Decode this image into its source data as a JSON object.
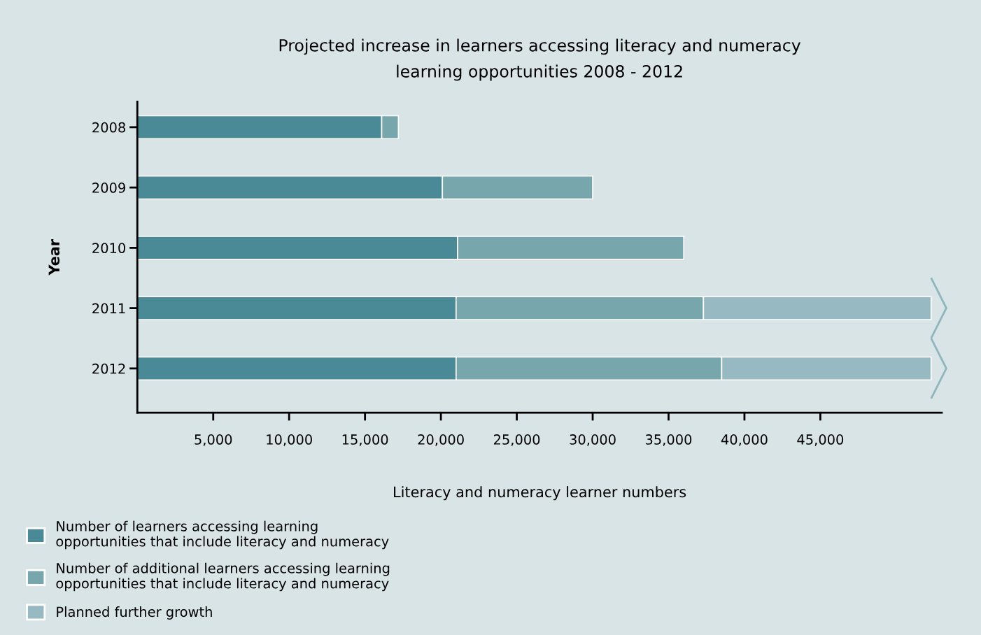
{
  "chart_data": {
    "type": "bar",
    "orientation": "horizontal",
    "stacked": true,
    "title": "Projected increase in learners accessing literacy and numeracy\nlearning opportunities 2008 - 2012",
    "xlabel": "Literacy and numeracy learner numbers",
    "ylabel": "Year",
    "categories": [
      "2008",
      "2009",
      "2010",
      "2011",
      "2012"
    ],
    "series": [
      {
        "name": "Number of learners accessing learning\nopportunities that include literacy and numeracy",
        "color": "#4a8a96",
        "values": [
          16100,
          20100,
          21100,
          21000,
          21000
        ]
      },
      {
        "name": "Number of additional learners accessing learning\nopportunities that include literacy and numeracy",
        "color": "#77a6ad",
        "values": [
          1100,
          9900,
          14900,
          16300,
          17500
        ]
      },
      {
        "name": "Planned further growth",
        "color": "#97bac2",
        "values": [
          null,
          null,
          null,
          15000,
          13800
        ]
      }
    ],
    "xlim": [
      0,
      53000
    ],
    "xticks": [
      {
        "value": 5000,
        "label": "5,000"
      },
      {
        "value": 10000,
        "label": "10,000"
      },
      {
        "value": 15000,
        "label": "15,000"
      },
      {
        "value": 20000,
        "label": "20,000"
      },
      {
        "value": 25000,
        "label": "25,000"
      },
      {
        "value": 30000,
        "label": "30,000"
      },
      {
        "value": 35000,
        "label": "35,000"
      },
      {
        "value": 40000,
        "label": "40,000"
      },
      {
        "value": 45000,
        "label": "45,000"
      }
    ],
    "grid": false,
    "legend": "bottom left"
  }
}
